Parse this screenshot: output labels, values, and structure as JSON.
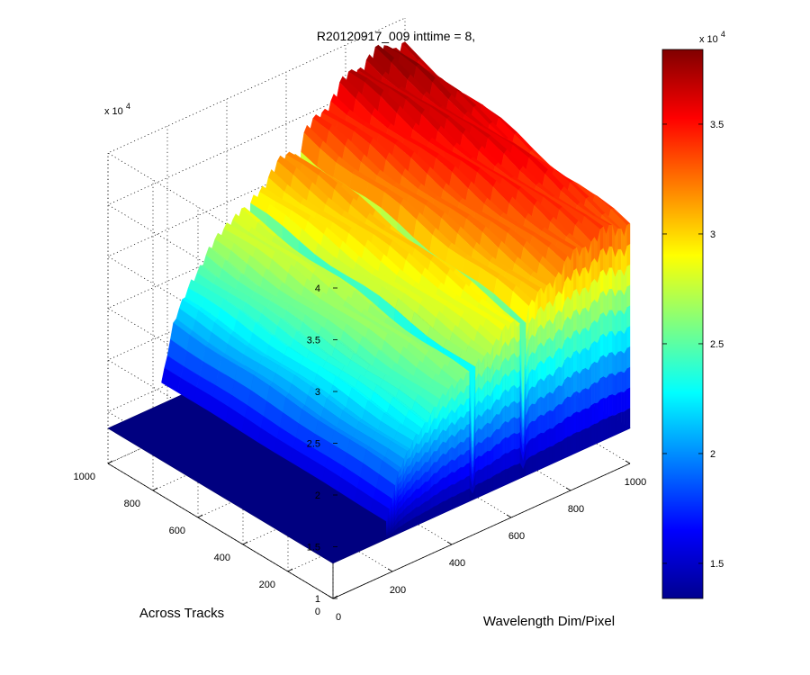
{
  "chart_data": {
    "type": "surface",
    "title": "R20120917_009 inttime = 8,",
    "xlabel": "Wavelength Dim/Pixel",
    "ylabel": "Across Tracks",
    "zlabel": "",
    "x_ticks": [
      "0",
      "200",
      "400",
      "600",
      "800",
      "1000"
    ],
    "y_ticks": [
      "0",
      "200",
      "400",
      "600",
      "800",
      "1000"
    ],
    "z_ticks": [
      "1",
      "1.5",
      "2",
      "2.5",
      "3",
      "3.5",
      "4"
    ],
    "z_multiplier": "x 10",
    "z_multiplier_exp": "4",
    "xlim": [
      0,
      1000
    ],
    "ylim": [
      0,
      1000
    ],
    "zlim": [
      10000,
      40000
    ],
    "grid": true,
    "colormap": "jet",
    "colorbar": {
      "ticks": [
        "1.5",
        "2",
        "2.5",
        "3",
        "3.5"
      ],
      "tick_values": [
        15000,
        20000,
        25000,
        30000,
        35000
      ],
      "range": [
        13400,
        38400
      ],
      "multiplier": "x 10",
      "multiplier_exp": "4"
    },
    "baseline": 13400,
    "signal_region": {
      "x_range": [
        180,
        1000
      ],
      "y_range": [
        0,
        1000
      ]
    },
    "spectrum_profile": {
      "x": [
        180,
        220,
        280,
        340,
        400,
        460,
        520,
        580,
        640,
        700,
        760,
        820,
        880,
        940,
        1000
      ],
      "peak_z": [
        15500,
        20500,
        24000,
        26000,
        28000,
        28500,
        30000,
        31500,
        32500,
        34000,
        35500,
        37000,
        37500,
        38000,
        37000
      ]
    }
  }
}
